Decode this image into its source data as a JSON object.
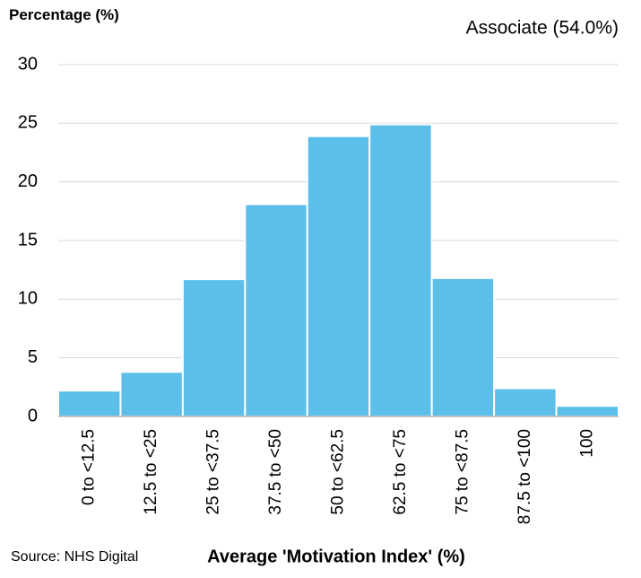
{
  "chart_data": {
    "type": "bar",
    "y_label": "Percentage (%)",
    "annotation": "Associate (54.0%)",
    "x_label": "Average 'Motivation Index' (%)",
    "source": "Source: NHS Digital",
    "categories": [
      "0 to <12.5",
      "12.5 to <25",
      "25 to <37.5",
      "37.5 to <50",
      "50 to <62.5",
      "62.5 to <75",
      "75 to <87.5",
      "87.5 to <100",
      "100"
    ],
    "values": [
      2.2,
      3.8,
      11.7,
      18.1,
      23.9,
      24.9,
      11.8,
      2.4,
      0.9
    ],
    "color": "#5bbfe9",
    "ylim": [
      0,
      30
    ],
    "yticks": [
      0,
      5,
      10,
      15,
      20,
      25,
      30
    ],
    "grid": true
  }
}
